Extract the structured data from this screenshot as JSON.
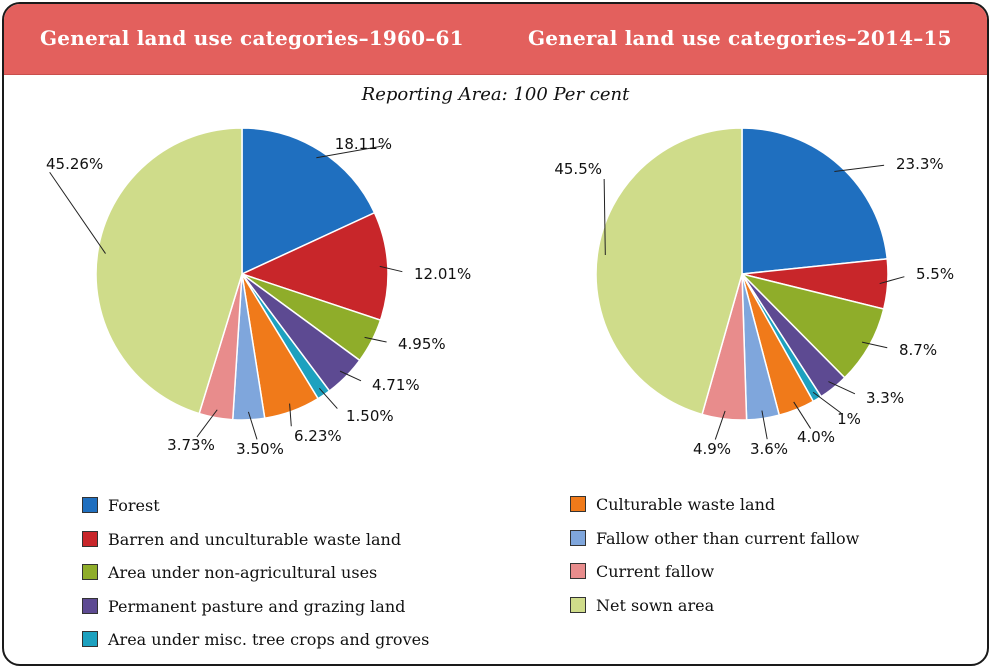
{
  "header": {
    "left_title": "General land use categories–1960–61",
    "right_title": "General land use categories–2014–15"
  },
  "subtitle": "Reporting Area: 100 Per cent",
  "colors": {
    "forest": "#1f6fbf",
    "barren": "#c8262a",
    "non_agri": "#8fad2a",
    "pasture": "#5d4a92",
    "misc_tree": "#1da1bf",
    "culturable_waste": "#f07a1a",
    "fallow_other": "#7fa6dc",
    "current_fallow": "#e88c8c",
    "net_sown": "#cfdc8a"
  },
  "legend": {
    "items": [
      {
        "label": "Forest",
        "color": "#1f6fbf"
      },
      {
        "label": "Barren and unculturable waste land",
        "color": "#c8262a"
      },
      {
        "label": "Area under non-agricultural uses",
        "color": "#8fad2a"
      },
      {
        "label": "Permanent pasture and grazing land",
        "color": "#5d4a92"
      },
      {
        "label": "Area under misc. tree crops and groves",
        "color": "#1da1bf"
      },
      {
        "label": "Culturable waste land",
        "color": "#f07a1a"
      },
      {
        "label": "Fallow other than current fallow",
        "color": "#7fa6dc"
      },
      {
        "label": "Current fallow",
        "color": "#e88c8c"
      },
      {
        "label": "Net sown area",
        "color": "#cfdc8a"
      }
    ]
  },
  "chart_data": [
    {
      "type": "pie",
      "title": "General land use categories–1960–61",
      "categories": [
        "Forest",
        "Barren and unculturable waste land",
        "Area under non-agricultural uses",
        "Permanent pasture and grazing land",
        "Area under misc. tree crops and groves",
        "Culturable waste land",
        "Fallow other than current fallow",
        "Current fallow",
        "Net sown area"
      ],
      "values": [
        18.11,
        12.01,
        4.95,
        4.71,
        1.5,
        6.23,
        3.5,
        3.73,
        45.26
      ],
      "labels": [
        "18.11%",
        "12.01%",
        "4.95%",
        "4.71%",
        "1.50%",
        "6.23%",
        "3.50%",
        "3.73%",
        "45.26%"
      ]
    },
    {
      "type": "pie",
      "title": "General land use categories–2014–15",
      "categories": [
        "Forest",
        "Barren and unculturable waste land",
        "Area under non-agricultural uses",
        "Permanent pasture and grazing land",
        "Area under misc. tree crops and groves",
        "Culturable waste land",
        "Fallow other than current fallow",
        "Current fallow",
        "Net sown area"
      ],
      "values": [
        23.3,
        5.5,
        8.7,
        3.3,
        1,
        4.0,
        3.6,
        4.9,
        45.5
      ],
      "labels": [
        "23.3%",
        "5.5%",
        "8.7%",
        "3.3%",
        "1%",
        "4.0%",
        "3.6%",
        "4.9%",
        "45.5%"
      ]
    }
  ]
}
